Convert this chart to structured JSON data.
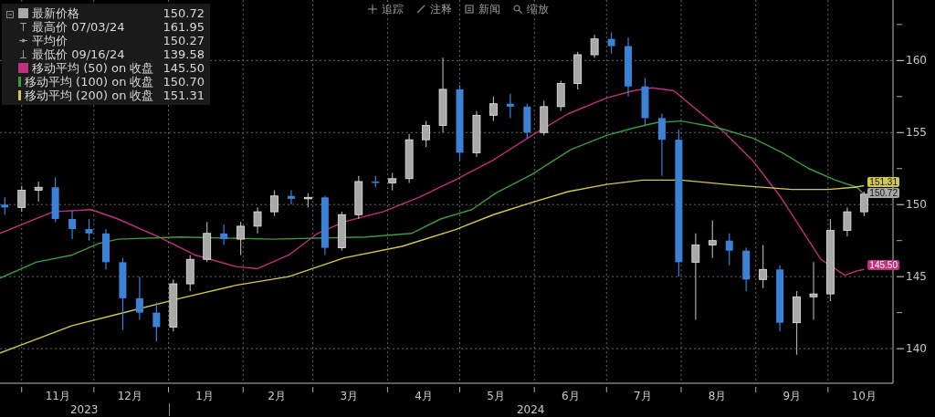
{
  "chart_data": {
    "type": "candlestick",
    "xlim": [
      "2023-10-23",
      "2024-10-28"
    ],
    "xticks": [
      {
        "value": "2023-11-01",
        "label": null
      },
      {
        "value": "2023-11-16",
        "label": "11月"
      },
      {
        "value": "2023-12-01",
        "label": null
      },
      {
        "value": "2023-12-16",
        "label": "12月"
      },
      {
        "value": "2024-01-01",
        "label": null
      },
      {
        "value": "2024-01-16",
        "label": "1月"
      },
      {
        "value": "2024-02-01",
        "label": null
      },
      {
        "value": "2024-02-15",
        "label": "2月"
      },
      {
        "value": "2024-03-01",
        "label": null
      },
      {
        "value": "2024-03-16",
        "label": "3月"
      },
      {
        "value": "2024-04-01",
        "label": null
      },
      {
        "value": "2024-04-16",
        "label": "4月"
      },
      {
        "value": "2024-05-01",
        "label": null
      },
      {
        "value": "2024-05-16",
        "label": "5月"
      },
      {
        "value": "2024-06-01",
        "label": null
      },
      {
        "value": "2024-06-16",
        "label": "6月"
      },
      {
        "value": "2024-07-01",
        "label": null
      },
      {
        "value": "2024-07-16",
        "label": "7月"
      },
      {
        "value": "2024-08-01",
        "label": null
      },
      {
        "value": "2024-08-16",
        "label": "8月"
      },
      {
        "value": "2024-09-01",
        "label": null
      },
      {
        "value": "2024-09-16",
        "label": "9月"
      },
      {
        "value": "2024-10-01",
        "label": null
      },
      {
        "value": "2024-10-16",
        "label": "10月"
      }
    ],
    "ylim": [
      137.6,
      164.2
    ],
    "yticks": [
      {
        "value": 140,
        "label": "140"
      },
      {
        "value": 142.5,
        "label": null
      },
      {
        "value": 145,
        "label": "145"
      },
      {
        "value": 147.5,
        "label": null
      },
      {
        "value": 150,
        "label": "150"
      },
      {
        "value": 152.5,
        "label": null
      },
      {
        "value": 155,
        "label": "155"
      },
      {
        "value": 157.5,
        "label": null
      },
      {
        "value": 160,
        "label": "160"
      },
      {
        "value": 162.5,
        "label": null
      }
    ],
    "grid": true,
    "legend": "top left",
    "annotations": [
      "追踪",
      "注释",
      "新闻",
      "缩放",
      "150.72",
      "最高价 07/03/24",
      "161.95",
      "平均价",
      "150.27",
      "最低价 09/16/24",
      "139.58",
      "145.50",
      "150.70",
      "151.31",
      "2023",
      "2024"
    ],
    "series": [
      {
        "name": "最新价格",
        "color": "#a8a8a8",
        "x": [
          "2023-10-25",
          "2023-11-01",
          "2023-11-08",
          "2023-11-15",
          "2023-11-22",
          "2023-11-29",
          "2023-12-06",
          "2023-12-13",
          "2023-12-20",
          "2023-12-27",
          "2024-01-03",
          "2024-01-10",
          "2024-01-17",
          "2024-01-24",
          "2024-01-31",
          "2024-02-07",
          "2024-02-14",
          "2024-02-21",
          "2024-02-28",
          "2024-03-06",
          "2024-03-13",
          "2024-03-20",
          "2024-03-27",
          "2024-04-03",
          "2024-04-10",
          "2024-04-17",
          "2024-04-24",
          "2024-05-01",
          "2024-05-08",
          "2024-05-15",
          "2024-05-22",
          "2024-05-29",
          "2024-06-05",
          "2024-06-12",
          "2024-06-19",
          "2024-06-26",
          "2024-07-03",
          "2024-07-10",
          "2024-07-17",
          "2024-07-24",
          "2024-07-31",
          "2024-08-07",
          "2024-08-14",
          "2024-08-21",
          "2024-08-28",
          "2024-09-04",
          "2024-09-11",
          "2024-09-18",
          "2024-09-25",
          "2024-10-02",
          "2024-10-09",
          "2024-10-16"
        ],
        "ohlc": [
          [
            150.0,
            150.5,
            149.3,
            149.8
          ],
          [
            149.8,
            151.3,
            149.5,
            151.0
          ],
          [
            151.0,
            151.6,
            150.2,
            151.2
          ],
          [
            151.2,
            151.9,
            148.8,
            149.0
          ],
          [
            149.0,
            149.6,
            147.6,
            148.3
          ],
          [
            148.3,
            149.0,
            147.5,
            148.0
          ],
          [
            148.0,
            148.3,
            145.5,
            146.0
          ],
          [
            146.0,
            146.3,
            141.3,
            143.5
          ],
          [
            143.5,
            145.0,
            142.0,
            142.5
          ],
          [
            142.5,
            143.2,
            140.5,
            141.5
          ],
          [
            141.5,
            144.8,
            141.2,
            144.5
          ],
          [
            144.5,
            146.5,
            144.0,
            146.2
          ],
          [
            146.2,
            148.8,
            146.0,
            148.0
          ],
          [
            148.0,
            148.6,
            147.2,
            147.6
          ],
          [
            147.6,
            148.8,
            146.5,
            148.5
          ],
          [
            148.5,
            149.8,
            148.0,
            149.5
          ],
          [
            149.5,
            151.0,
            149.2,
            150.6
          ],
          [
            150.6,
            151.0,
            150.0,
            150.4
          ],
          [
            150.4,
            150.8,
            149.8,
            150.5
          ],
          [
            150.5,
            150.6,
            146.5,
            147.0
          ],
          [
            147.0,
            149.5,
            146.8,
            149.3
          ],
          [
            149.3,
            152.0,
            149.0,
            151.6
          ],
          [
            151.6,
            152.0,
            151.2,
            151.5
          ],
          [
            151.5,
            152.2,
            151.0,
            151.8
          ],
          [
            151.8,
            154.9,
            151.5,
            154.5
          ],
          [
            154.5,
            155.8,
            154.0,
            155.5
          ],
          [
            155.5,
            160.2,
            155.0,
            158.0
          ],
          [
            158.0,
            158.3,
            153.0,
            153.6
          ],
          [
            153.6,
            156.5,
            153.3,
            156.2
          ],
          [
            156.2,
            157.5,
            155.8,
            157.0
          ],
          [
            157.0,
            157.7,
            156.0,
            156.8
          ],
          [
            156.8,
            157.0,
            154.6,
            155.0
          ],
          [
            155.0,
            157.2,
            154.8,
            156.8
          ],
          [
            156.8,
            158.6,
            156.5,
            158.4
          ],
          [
            158.4,
            160.6,
            158.0,
            160.4
          ],
          [
            160.4,
            161.8,
            160.2,
            161.5
          ],
          [
            161.5,
            161.95,
            160.5,
            161.0
          ],
          [
            161.0,
            161.6,
            157.5,
            158.2
          ],
          [
            158.2,
            158.8,
            155.5,
            156.0
          ],
          [
            156.0,
            156.3,
            152.0,
            154.5
          ],
          [
            154.5,
            155.2,
            145.0,
            146.0
          ],
          [
            146.0,
            148.0,
            142.0,
            147.2
          ],
          [
            147.2,
            148.9,
            146.3,
            147.5
          ],
          [
            147.5,
            148.0,
            145.8,
            146.8
          ],
          [
            146.8,
            147.0,
            144.0,
            144.8
          ],
          [
            144.8,
            147.2,
            144.2,
            145.5
          ],
          [
            145.5,
            145.8,
            141.2,
            141.8
          ],
          [
            141.8,
            144.0,
            139.58,
            143.6
          ],
          [
            143.6,
            146.0,
            142.0,
            143.8
          ],
          [
            143.8,
            149.0,
            143.3,
            148.2
          ],
          [
            148.2,
            149.8,
            147.8,
            149.5
          ],
          [
            149.5,
            150.9,
            149.2,
            150.72
          ]
        ],
        "colors": [
          "#3b82d6",
          "#a8a8a8",
          "#a8a8a8",
          "#3b82d6",
          "#3b82d6",
          "#3b82d6",
          "#3b82d6",
          "#3b82d6",
          "#3b82d6",
          "#3b82d6",
          "#a8a8a8",
          "#a8a8a8",
          "#a8a8a8",
          "#3b82d6",
          "#a8a8a8",
          "#a8a8a8",
          "#a8a8a8",
          "#3b82d6",
          "#a8a8a8",
          "#3b82d6",
          "#a8a8a8",
          "#a8a8a8",
          "#3b82d6",
          "#a8a8a8",
          "#a8a8a8",
          "#a8a8a8",
          "#a8a8a8",
          "#3b82d6",
          "#a8a8a8",
          "#a8a8a8",
          "#3b82d6",
          "#3b82d6",
          "#a8a8a8",
          "#a8a8a8",
          "#a8a8a8",
          "#a8a8a8",
          "#3b82d6",
          "#3b82d6",
          "#3b82d6",
          "#3b82d6",
          "#3b82d6",
          "#a8a8a8",
          "#a8a8a8",
          "#3b82d6",
          "#3b82d6",
          "#a8a8a8",
          "#3b82d6",
          "#a8a8a8",
          "#a8a8a8",
          "#a8a8a8",
          "#a8a8a8",
          "#a8a8a8"
        ],
        "value_labels": [
          null,
          null,
          null,
          null,
          null,
          null,
          null,
          null,
          null,
          null,
          null,
          null,
          null,
          null,
          null,
          null,
          null,
          null,
          null,
          null,
          null,
          null,
          null,
          null,
          null,
          null,
          null,
          null,
          null,
          null,
          null,
          null,
          null,
          null,
          null,
          null,
          null,
          null,
          null,
          null,
          null,
          null,
          null,
          null,
          null,
          null,
          null,
          null,
          null,
          null,
          null,
          "150.72"
        ]
      },
      {
        "type": "line",
        "name": "移动平均 (50) on 收盘",
        "color": "#c0307e",
        "x": [
          "2023-10-23",
          "2023-11-14",
          "2023-11-30",
          "2023-12-11",
          "2023-12-28",
          "2024-01-12",
          "2024-01-29",
          "2024-02-07",
          "2024-02-20",
          "2024-03-03",
          "2024-03-14",
          "2024-03-30",
          "2024-04-14",
          "2024-04-29",
          "2024-05-15",
          "2024-05-31",
          "2024-06-15",
          "2024-07-01",
          "2024-07-12",
          "2024-07-20",
          "2024-07-29",
          "2024-08-08",
          "2024-08-19",
          "2024-08-31",
          "2024-09-11",
          "2024-09-23",
          "2024-09-28",
          "2024-10-08",
          "2024-10-13",
          "2024-10-16"
        ],
        "values": [
          148.0,
          149.5,
          149.65,
          149.0,
          147.75,
          146.5,
          145.7,
          145.55,
          146.5,
          148.0,
          148.8,
          149.5,
          150.5,
          151.7,
          153.1,
          154.8,
          156.3,
          157.4,
          157.9,
          158.1,
          157.9,
          156.5,
          155.0,
          153.0,
          150.6,
          147.5,
          146.2,
          145.1,
          145.4,
          145.5
        ],
        "value_labels": [
          null,
          null,
          null,
          null,
          null,
          null,
          null,
          null,
          null,
          null,
          null,
          null,
          null,
          null,
          null,
          null,
          null,
          null,
          null,
          null,
          null,
          null,
          null,
          null,
          null,
          null,
          null,
          null,
          null,
          "145.50"
        ]
      },
      {
        "type": "line",
        "name": "移动平均 (100) on 收盘",
        "color": "#3c9a40",
        "x": [
          "2023-10-23",
          "2023-11-07",
          "2023-11-22",
          "2023-12-03",
          "2023-12-11",
          "2024-01-06",
          "2024-02-13",
          "2024-03-23",
          "2024-04-11",
          "2024-04-23",
          "2024-05-06",
          "2024-05-16",
          "2024-05-31",
          "2024-06-16",
          "2024-07-01",
          "2024-07-13",
          "2024-07-22",
          "2024-08-01",
          "2024-08-16",
          "2024-08-31",
          "2024-09-12",
          "2024-09-23",
          "2024-10-04",
          "2024-10-13",
          "2024-10-16"
        ],
        "values": [
          144.9,
          146.0,
          146.5,
          147.3,
          147.6,
          147.75,
          147.6,
          147.75,
          148.0,
          149.0,
          149.65,
          150.8,
          152.1,
          153.8,
          154.8,
          155.35,
          155.7,
          155.8,
          155.35,
          154.6,
          153.6,
          152.5,
          151.7,
          151.2,
          150.7
        ]
      },
      {
        "type": "line",
        "name": "移动平均 (200) on 收盘",
        "color": "#d0c850",
        "x": [
          "2023-10-23",
          "2023-11-03",
          "2023-11-22",
          "2023-12-11",
          "2024-01-06",
          "2024-01-29",
          "2024-02-20",
          "2024-03-14",
          "2024-04-07",
          "2024-04-29",
          "2024-05-15",
          "2024-05-31",
          "2024-06-15",
          "2024-07-01",
          "2024-07-16",
          "2024-08-01",
          "2024-08-23",
          "2024-09-16",
          "2024-10-01",
          "2024-10-12",
          "2024-10-16"
        ],
        "values": [
          139.7,
          140.4,
          141.6,
          142.4,
          143.5,
          144.4,
          145.0,
          146.3,
          147.1,
          148.25,
          149.3,
          150.15,
          150.9,
          151.4,
          151.7,
          151.7,
          151.35,
          151.05,
          151.05,
          151.2,
          151.31
        ],
        "value_labels": [
          null,
          null,
          null,
          null,
          null,
          null,
          null,
          null,
          null,
          null,
          null,
          null,
          null,
          null,
          null,
          null,
          null,
          null,
          null,
          null,
          "151.31"
        ]
      }
    ]
  }
}
